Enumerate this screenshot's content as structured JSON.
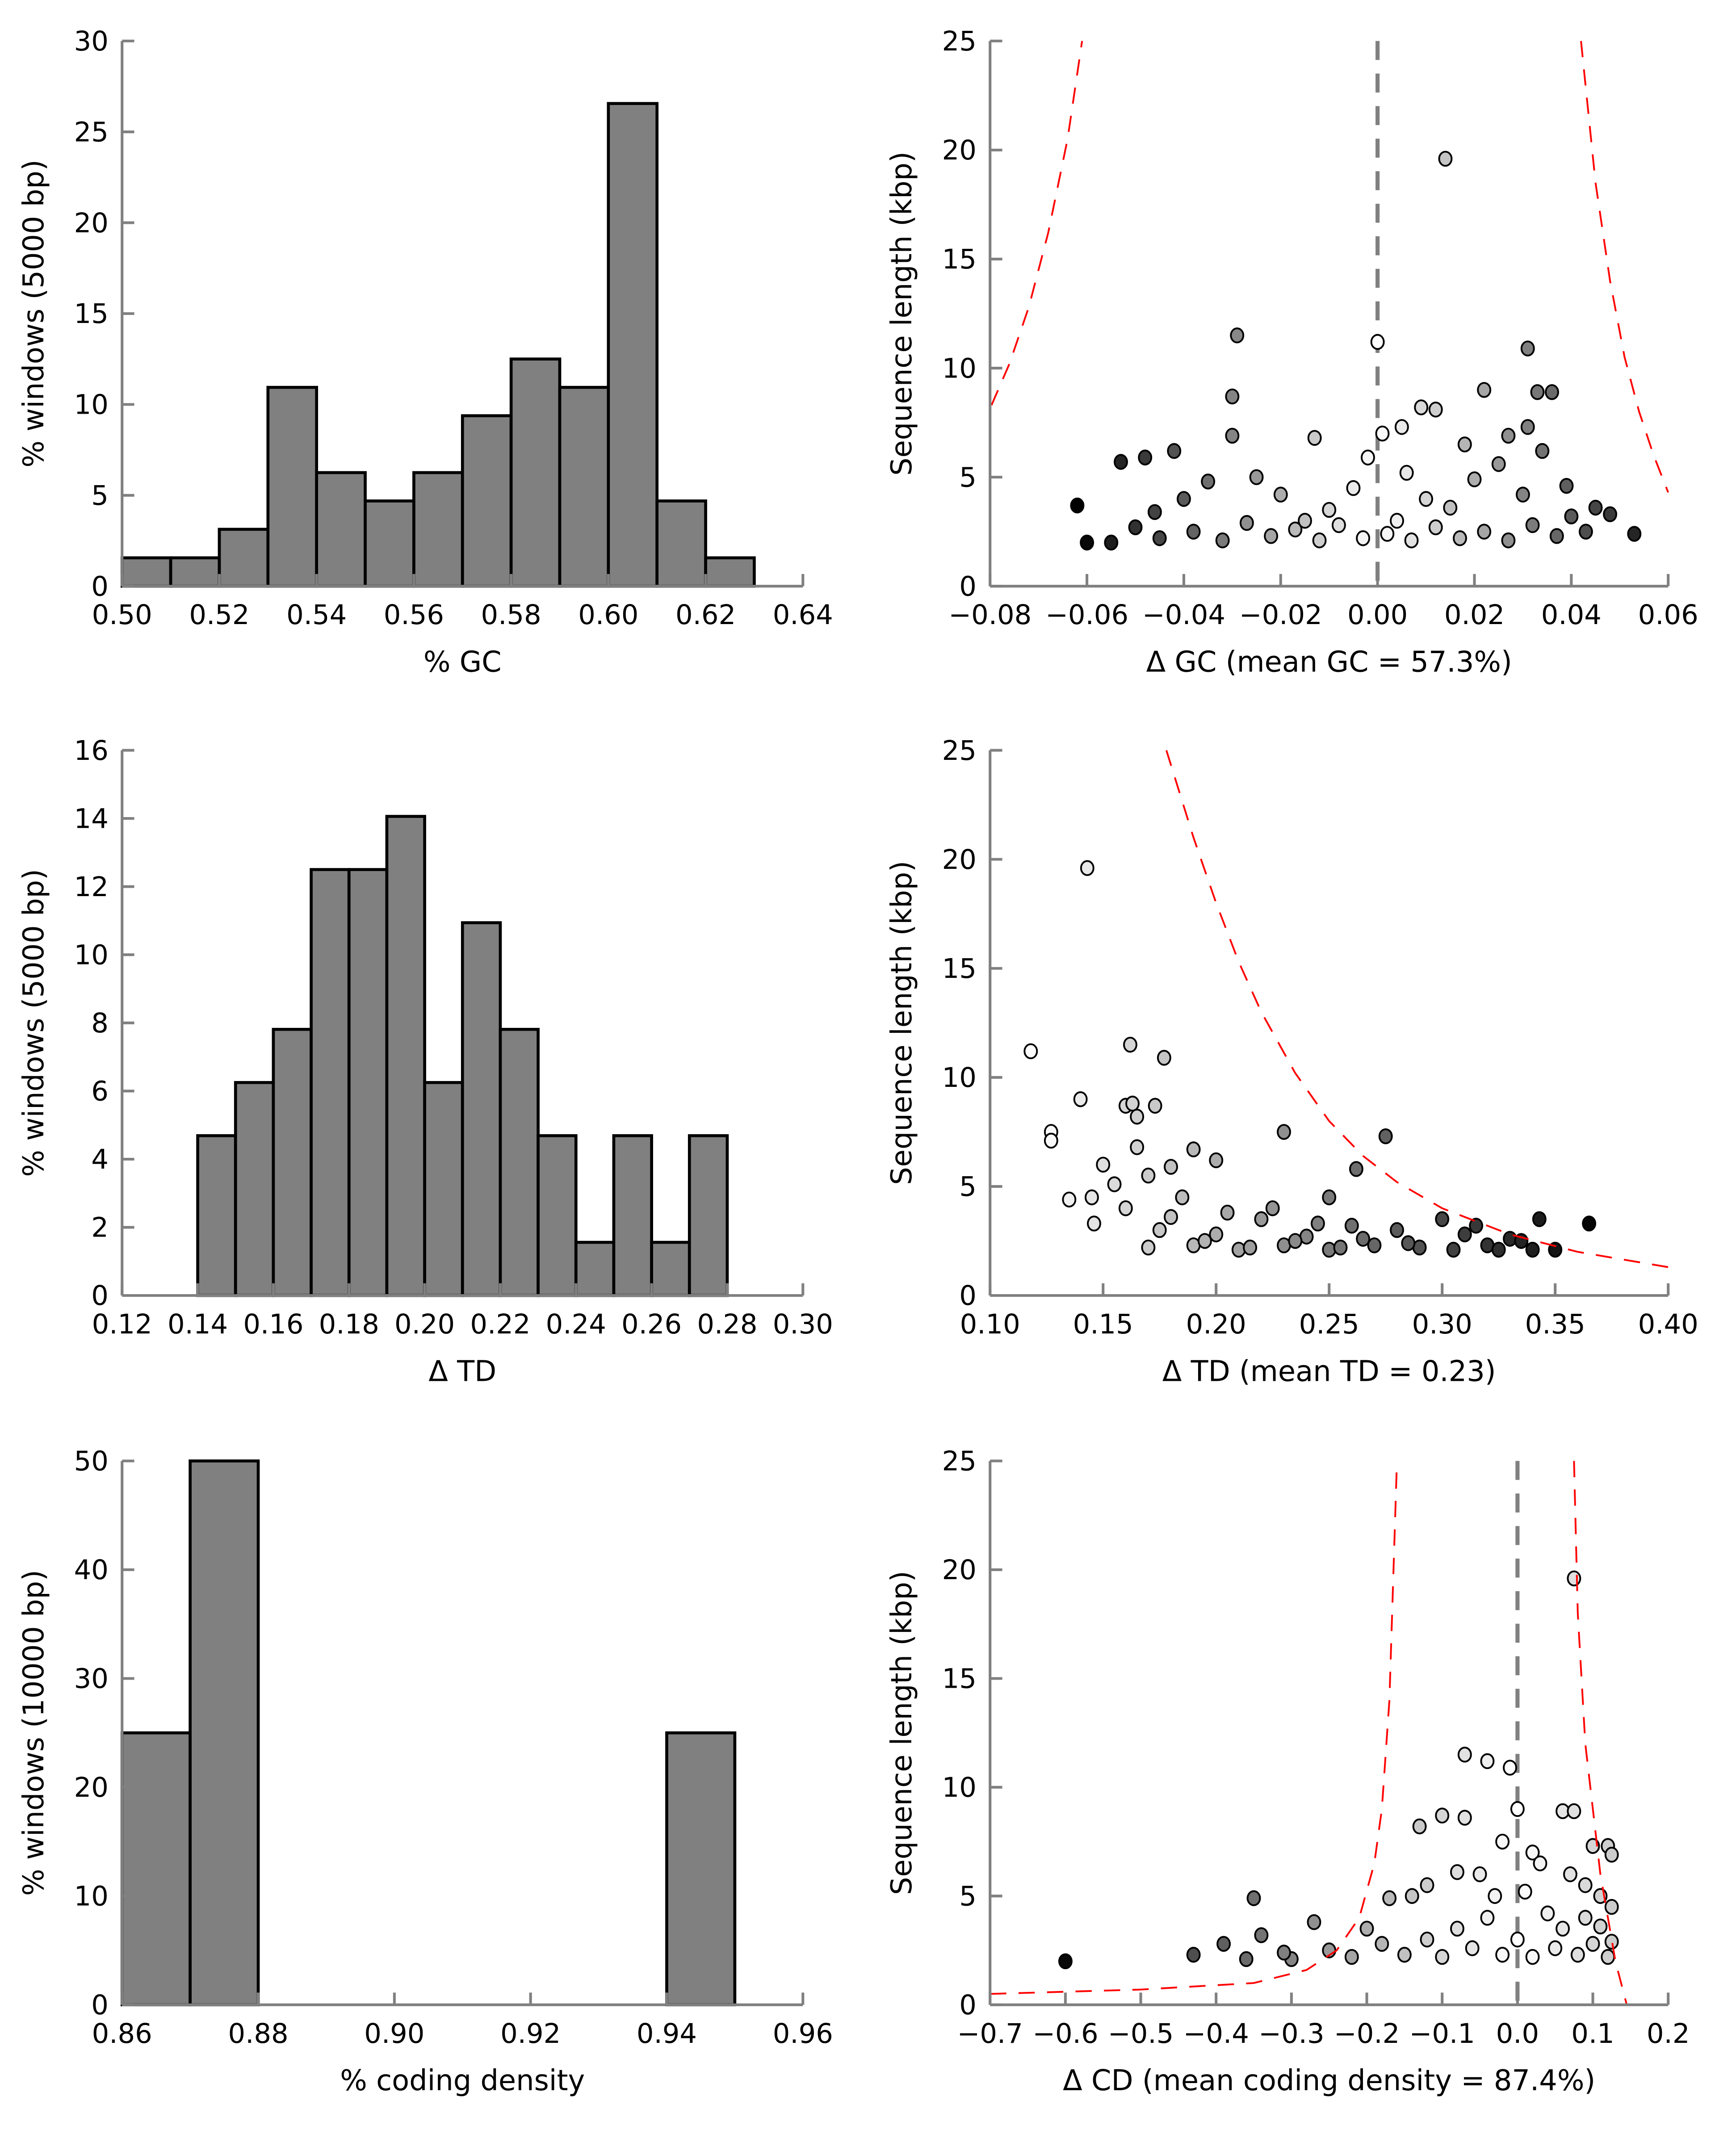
{
  "chart_data": [
    {
      "id": "gc-hist",
      "type": "bar",
      "xlabel": "% GC",
      "ylabel": "% windows (5000 bp)",
      "xlim": [
        0.5,
        0.64
      ],
      "ylim": [
        0,
        30
      ],
      "xticks": [
        0.5,
        0.52,
        0.54,
        0.56,
        0.58,
        0.6,
        0.62,
        0.64
      ],
      "xtick_labels": [
        "0.50",
        "0.52",
        "0.54",
        "0.56",
        "0.58",
        "0.60",
        "0.62",
        "0.64"
      ],
      "yticks": [
        0,
        5,
        10,
        15,
        20,
        25,
        30
      ],
      "ytick_labels": [
        "0",
        "5",
        "10",
        "15",
        "20",
        "25",
        "30"
      ],
      "bin_width": 0.01,
      "bin_starts": [
        0.5,
        0.51,
        0.52,
        0.53,
        0.54,
        0.55,
        0.56,
        0.57,
        0.58,
        0.59,
        0.6,
        0.61,
        0.62
      ],
      "values": [
        1.56,
        1.56,
        3.13,
        10.94,
        6.25,
        4.69,
        6.25,
        9.38,
        12.5,
        10.94,
        26.56,
        4.69,
        1.56
      ],
      "bar_color": "#808080"
    },
    {
      "id": "gc-scatter",
      "type": "scatter",
      "xlabel": "Δ GC (mean GC = 57.3%)",
      "ylabel": "Sequence length (kbp)",
      "xlim": [
        -0.08,
        0.06
      ],
      "ylim": [
        0,
        25
      ],
      "xticks": [
        -0.08,
        -0.06,
        -0.04,
        -0.02,
        0,
        0.02,
        0.04,
        0.06
      ],
      "xtick_labels": [
        "−0.08",
        "−0.06",
        "−0.04",
        "−0.02",
        "0.00",
        "0.02",
        "0.04",
        "0.06"
      ],
      "yticks": [
        0,
        5,
        10,
        15,
        20,
        25
      ],
      "ytick_labels": [
        "0",
        "5",
        "10",
        "15",
        "20",
        "25"
      ],
      "vline": 0,
      "shade_center": 0,
      "shade_range": 0.062,
      "curves": [
        [
          [
            -0.0797,
            8.3
          ],
          [
            -0.076,
            10.2
          ],
          [
            -0.072,
            12.8
          ],
          [
            -0.068,
            16.2
          ],
          [
            -0.064,
            20.5
          ],
          [
            -0.061,
            25
          ]
        ],
        [
          [
            0.042,
            25
          ],
          [
            0.045,
            18.5
          ],
          [
            0.048,
            14
          ],
          [
            0.051,
            10.5
          ],
          [
            0.054,
            8
          ],
          [
            0.057,
            6
          ],
          [
            0.06,
            4.3
          ]
        ]
      ],
      "points": [
        [
          0.014,
          19.6
        ],
        [
          0,
          11.2
        ],
        [
          -0.029,
          11.5
        ],
        [
          0.031,
          10.9
        ],
        [
          -0.03,
          8.7
        ],
        [
          0.022,
          9.0
        ],
        [
          0.033,
          8.9
        ],
        [
          0.036,
          8.9
        ],
        [
          -0.062,
          3.7
        ],
        [
          -0.06,
          2.0
        ],
        [
          -0.055,
          2.0
        ],
        [
          -0.053,
          5.7
        ],
        [
          0.053,
          2.4
        ],
        [
          0.048,
          3.3
        ],
        [
          0.045,
          3.6
        ],
        [
          0.009,
          8.2
        ],
        [
          0.012,
          8.1
        ],
        [
          0.001,
          7.0
        ],
        [
          -0.013,
          6.8
        ],
        [
          0.005,
          7.3
        ],
        [
          -0.048,
          5.9
        ],
        [
          -0.042,
          6.2
        ],
        [
          -0.03,
          6.9
        ],
        [
          -0.04,
          4.0
        ],
        [
          -0.035,
          4.8
        ],
        [
          -0.025,
          5.0
        ],
        [
          -0.02,
          4.2
        ],
        [
          -0.01,
          3.5
        ],
        [
          -0.005,
          4.5
        ],
        [
          0.004,
          3.0
        ],
        [
          0.01,
          4.0
        ],
        [
          0.015,
          3.6
        ],
        [
          0.02,
          4.9
        ],
        [
          0.025,
          5.6
        ],
        [
          0.03,
          4.2
        ],
        [
          0.034,
          6.2
        ],
        [
          0.04,
          3.2
        ],
        [
          0.043,
          2.5
        ],
        [
          -0.05,
          2.7
        ],
        [
          -0.045,
          2.2
        ],
        [
          -0.038,
          2.5
        ],
        [
          -0.032,
          2.1
        ],
        [
          -0.027,
          2.9
        ],
        [
          -0.022,
          2.3
        ],
        [
          -0.017,
          2.6
        ],
        [
          -0.012,
          2.1
        ],
        [
          -0.008,
          2.8
        ],
        [
          -0.003,
          2.2
        ],
        [
          0.002,
          2.4
        ],
        [
          0.007,
          2.1
        ],
        [
          0.012,
          2.7
        ],
        [
          0.017,
          2.2
        ],
        [
          0.022,
          2.5
        ],
        [
          0.027,
          2.1
        ],
        [
          0.032,
          2.8
        ],
        [
          0.037,
          2.3
        ],
        [
          -0.002,
          5.9
        ],
        [
          0.018,
          6.5
        ],
        [
          0.027,
          6.9
        ],
        [
          0.031,
          7.3
        ],
        [
          -0.015,
          3.0
        ],
        [
          0.006,
          5.2
        ],
        [
          -0.046,
          3.4
        ],
        [
          0.039,
          4.6
        ]
      ]
    },
    {
      "id": "td-hist",
      "type": "bar",
      "xlabel": "Δ TD",
      "ylabel": "% windows (5000 bp)",
      "xlim": [
        0.12,
        0.3
      ],
      "ylim": [
        0,
        16
      ],
      "xticks": [
        0.12,
        0.14,
        0.16,
        0.18,
        0.2,
        0.22,
        0.24,
        0.26,
        0.28,
        0.3
      ],
      "xtick_labels": [
        "0.12",
        "0.14",
        "0.16",
        "0.18",
        "0.20",
        "0.22",
        "0.24",
        "0.26",
        "0.28",
        "0.30"
      ],
      "yticks": [
        0,
        2,
        4,
        6,
        8,
        10,
        12,
        14,
        16
      ],
      "ytick_labels": [
        "0",
        "2",
        "4",
        "6",
        "8",
        "10",
        "12",
        "14",
        "16"
      ],
      "bin_width": 0.01,
      "bin_starts": [
        0.14,
        0.15,
        0.16,
        0.17,
        0.18,
        0.19,
        0.2,
        0.21,
        0.22,
        0.23,
        0.24,
        0.25,
        0.26,
        0.27
      ],
      "values": [
        4.69,
        6.25,
        7.81,
        12.5,
        12.5,
        14.06,
        6.25,
        10.94,
        7.81,
        4.69,
        1.56,
        4.69,
        1.56,
        4.69
      ],
      "bar_color": "#808080"
    },
    {
      "id": "td-scatter",
      "type": "scatter",
      "xlabel": "Δ TD (mean TD = 0.23)",
      "ylabel": "Sequence length (kbp)",
      "xlim": [
        0.1,
        0.4
      ],
      "ylim": [
        0,
        25
      ],
      "xticks": [
        0.1,
        0.15,
        0.2,
        0.25,
        0.3,
        0.35,
        0.4
      ],
      "xtick_labels": [
        "0.10",
        "0.15",
        "0.20",
        "0.25",
        "0.30",
        "0.35",
        "0.40"
      ],
      "yticks": [
        0,
        5,
        10,
        15,
        20,
        25
      ],
      "ytick_labels": [
        "0",
        "5",
        "10",
        "15",
        "20",
        "25"
      ],
      "shade_center": 0.12,
      "shade_range": 0.25,
      "curves": [
        [
          [
            0.178,
            25
          ],
          [
            0.19,
            21
          ],
          [
            0.2,
            18
          ],
          [
            0.21,
            15.3
          ],
          [
            0.22,
            13
          ],
          [
            0.235,
            10.2
          ],
          [
            0.25,
            8
          ],
          [
            0.265,
            6.4
          ],
          [
            0.28,
            5.2
          ],
          [
            0.3,
            4
          ],
          [
            0.33,
            2.8
          ],
          [
            0.36,
            2
          ],
          [
            0.4,
            1.3
          ]
        ]
      ],
      "points": [
        [
          0.143,
          19.6
        ],
        [
          0.118,
          11.2
        ],
        [
          0.162,
          11.5
        ],
        [
          0.177,
          10.9
        ],
        [
          0.14,
          9.0
        ],
        [
          0.127,
          7.5
        ],
        [
          0.127,
          7.1
        ],
        [
          0.135,
          4.4
        ],
        [
          0.145,
          4.5
        ],
        [
          0.146,
          3.3
        ],
        [
          0.16,
          8.7
        ],
        [
          0.163,
          8.8
        ],
        [
          0.165,
          8.2
        ],
        [
          0.173,
          8.7
        ],
        [
          0.15,
          6.0
        ],
        [
          0.165,
          6.8
        ],
        [
          0.18,
          5.9
        ],
        [
          0.19,
          6.7
        ],
        [
          0.2,
          6.2
        ],
        [
          0.23,
          7.5
        ],
        [
          0.275,
          7.3
        ],
        [
          0.262,
          5.8
        ],
        [
          0.25,
          4.5
        ],
        [
          0.365,
          3.3
        ],
        [
          0.343,
          3.5
        ],
        [
          0.35,
          2.1
        ],
        [
          0.34,
          2.1
        ],
        [
          0.33,
          2.6
        ],
        [
          0.32,
          2.3
        ],
        [
          0.31,
          2.8
        ],
        [
          0.3,
          3.5
        ],
        [
          0.29,
          2.2
        ],
        [
          0.28,
          3.0
        ],
        [
          0.27,
          2.3
        ],
        [
          0.26,
          3.2
        ],
        [
          0.25,
          2.1
        ],
        [
          0.24,
          2.7
        ],
        [
          0.23,
          2.3
        ],
        [
          0.22,
          3.5
        ],
        [
          0.21,
          2.1
        ],
        [
          0.2,
          2.8
        ],
        [
          0.19,
          2.3
        ],
        [
          0.18,
          3.6
        ],
        [
          0.17,
          2.2
        ],
        [
          0.16,
          4.0
        ],
        [
          0.175,
          3.0
        ],
        [
          0.185,
          4.5
        ],
        [
          0.195,
          2.5
        ],
        [
          0.205,
          3.8
        ],
        [
          0.215,
          2.2
        ],
        [
          0.225,
          4.0
        ],
        [
          0.235,
          2.5
        ],
        [
          0.245,
          3.3
        ],
        [
          0.255,
          2.2
        ],
        [
          0.265,
          2.6
        ],
        [
          0.285,
          2.4
        ],
        [
          0.305,
          2.1
        ],
        [
          0.315,
          3.2
        ],
        [
          0.325,
          2.1
        ],
        [
          0.335,
          2.5
        ],
        [
          0.17,
          5.5
        ],
        [
          0.155,
          5.1
        ]
      ]
    },
    {
      "id": "cd-hist",
      "type": "bar",
      "xlabel": "% coding density",
      "ylabel": "% windows (10000 bp)",
      "xlim": [
        0.86,
        0.96
      ],
      "ylim": [
        0,
        50
      ],
      "xticks": [
        0.86,
        0.88,
        0.9,
        0.92,
        0.94,
        0.96
      ],
      "xtick_labels": [
        "0.86",
        "0.88",
        "0.90",
        "0.92",
        "0.94",
        "0.96"
      ],
      "yticks": [
        0,
        10,
        20,
        30,
        40,
        50
      ],
      "ytick_labels": [
        "0",
        "10",
        "20",
        "30",
        "40",
        "50"
      ],
      "bin_width": 0.01,
      "bin_starts": [
        0.86,
        0.87,
        0.94
      ],
      "values": [
        25,
        50,
        25
      ],
      "bar_color": "#808080"
    },
    {
      "id": "cd-scatter",
      "type": "scatter",
      "xlabel": "Δ CD (mean coding density = 87.4%)",
      "ylabel": "Sequence length (kbp)",
      "xlim": [
        -0.7,
        0.2
      ],
      "ylim": [
        0,
        25
      ],
      "xticks": [
        -0.7,
        -0.6,
        -0.5,
        -0.4,
        -0.3,
        -0.2,
        -0.1,
        0,
        0.1,
        0.2
      ],
      "xtick_labels": [
        "−0.7",
        "−0.6",
        "−0.5",
        "−0.4",
        "−0.3",
        "−0.2",
        "−0.1",
        "0.0",
        "0.1",
        "0.2"
      ],
      "yticks": [
        0,
        5,
        10,
        15,
        20,
        25
      ],
      "ytick_labels": [
        "0",
        "5",
        "10",
        "15",
        "20",
        "25"
      ],
      "vline": 0,
      "shade_center": 0,
      "shade_range": 0.62,
      "curves": [
        [
          [
            -0.7,
            0.5
          ],
          [
            -0.5,
            0.7
          ],
          [
            -0.35,
            1.0
          ],
          [
            -0.28,
            1.6
          ],
          [
            -0.24,
            2.5
          ],
          [
            -0.21,
            4
          ],
          [
            -0.19,
            6.5
          ],
          [
            -0.18,
            9
          ],
          [
            -0.17,
            14
          ],
          [
            -0.16,
            25
          ]
        ],
        [
          [
            0.075,
            25
          ],
          [
            0.08,
            18
          ],
          [
            0.09,
            12
          ],
          [
            0.1,
            9
          ],
          [
            0.11,
            6
          ],
          [
            0.12,
            4
          ],
          [
            0.13,
            2
          ],
          [
            0.145,
            0
          ]
        ]
      ],
      "points": [
        [
          0.075,
          19.6
        ],
        [
          -0.07,
          11.5
        ],
        [
          -0.04,
          11.2
        ],
        [
          -0.01,
          10.9
        ],
        [
          0.06,
          8.9
        ],
        [
          0.075,
          8.9
        ],
        [
          -0.1,
          8.7
        ],
        [
          -0.07,
          8.6
        ],
        [
          -0.13,
          8.2
        ],
        [
          -0.02,
          7.5
        ],
        [
          0.0,
          9.0
        ],
        [
          0.02,
          7.0
        ],
        [
          0.1,
          7.3
        ],
        [
          0.12,
          7.3
        ],
        [
          0.125,
          6.9
        ],
        [
          -0.6,
          2.0
        ],
        [
          -0.43,
          2.3
        ],
        [
          -0.39,
          2.8
        ],
        [
          -0.35,
          4.9
        ],
        [
          -0.34,
          3.2
        ],
        [
          -0.3,
          2.1
        ],
        [
          -0.27,
          3.8
        ],
        [
          -0.2,
          3.5
        ],
        [
          -0.17,
          4.9
        ],
        [
          -0.12,
          5.5
        ],
        [
          -0.14,
          5.0
        ],
        [
          -0.08,
          6.1
        ],
        [
          -0.05,
          6.0
        ],
        [
          0.03,
          6.5
        ],
        [
          0.07,
          6.0
        ],
        [
          0.09,
          5.5
        ],
        [
          0.11,
          5.0
        ],
        [
          -0.25,
          2.5
        ],
        [
          -0.22,
          2.2
        ],
        [
          -0.18,
          2.8
        ],
        [
          -0.15,
          2.3
        ],
        [
          -0.12,
          3.0
        ],
        [
          -0.1,
          2.2
        ],
        [
          -0.08,
          3.5
        ],
        [
          -0.06,
          2.6
        ],
        [
          -0.04,
          4.0
        ],
        [
          -0.02,
          2.3
        ],
        [
          0.0,
          3.0
        ],
        [
          0.02,
          2.2
        ],
        [
          0.04,
          4.2
        ],
        [
          0.05,
          2.6
        ],
        [
          0.06,
          3.5
        ],
        [
          0.08,
          2.3
        ],
        [
          0.09,
          4.0
        ],
        [
          0.1,
          2.8
        ],
        [
          0.11,
          3.6
        ],
        [
          0.12,
          2.2
        ],
        [
          0.125,
          4.5
        ],
        [
          0.125,
          2.9
        ],
        [
          -0.03,
          5.0
        ],
        [
          0.01,
          5.2
        ],
        [
          -0.36,
          2.1
        ],
        [
          -0.31,
          2.4
        ]
      ]
    }
  ],
  "colors": {
    "axis": "#808080",
    "curve": "#ff0000",
    "vline": "#808080"
  }
}
